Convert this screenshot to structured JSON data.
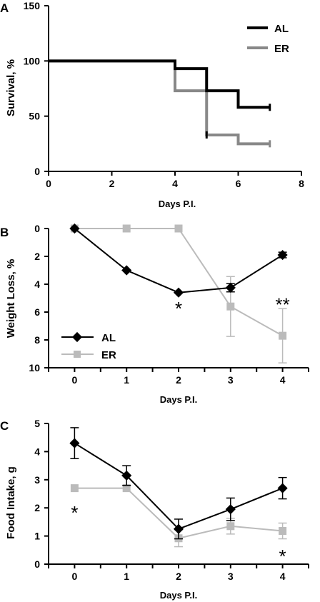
{
  "chart_data": [
    {
      "panel": "A",
      "type": "line",
      "step": true,
      "ylabel": "Survival, %",
      "xlabel": "Days P.I.",
      "xlim": [
        0,
        8
      ],
      "ylim": [
        0,
        150
      ],
      "xticks": [
        "0",
        "2",
        "4",
        "6",
        "8"
      ],
      "yticks": [
        "0",
        "50",
        "100",
        "150"
      ],
      "legend_placement": "top-right",
      "series": [
        {
          "name": "AL",
          "color": "#000000",
          "x": [
            0,
            4,
            5,
            6,
            7
          ],
          "y": [
            100,
            93,
            73,
            58,
            58
          ]
        },
        {
          "name": "ER",
          "color": "#888888",
          "x": [
            0,
            4,
            5,
            6,
            7
          ],
          "y": [
            100,
            73,
            33,
            25,
            25
          ]
        }
      ]
    },
    {
      "panel": "B",
      "type": "line",
      "ylabel": "Weight Loss, %",
      "xlabel": "Days P.I.",
      "xlim": [
        -0.5,
        4.5
      ],
      "ylim": [
        0,
        10
      ],
      "y_inverted": true,
      "xticks": [
        "0",
        "1",
        "2",
        "3",
        "4"
      ],
      "yticks": [
        "0",
        "2",
        "4",
        "6",
        "8",
        "10"
      ],
      "legend_placement": "bottom-left",
      "series": [
        {
          "name": "AL",
          "color": "#000000",
          "marker": "diamond",
          "x": [
            0,
            1,
            2,
            3,
            4
          ],
          "y": [
            0,
            3,
            4.6,
            4.25,
            1.9
          ],
          "err": [
            0,
            0,
            0,
            0.3,
            0.2
          ]
        },
        {
          "name": "ER",
          "color": "#bbbbbb",
          "marker": "square",
          "x": [
            0,
            1,
            2,
            3,
            4
          ],
          "y": [
            0,
            0,
            0,
            5.6,
            7.7
          ],
          "err": [
            0,
            0,
            0,
            2.15,
            1.95
          ]
        }
      ],
      "annotations": [
        {
          "text": "*",
          "x": 2,
          "y": 5.6
        },
        {
          "text": "**",
          "x": 4,
          "y": 5.3
        }
      ]
    },
    {
      "panel": "C",
      "type": "line",
      "ylabel": "Food Intake, g",
      "xlabel": "Days P.I.",
      "xlim": [
        -0.5,
        4.5
      ],
      "ylim": [
        0,
        5
      ],
      "xticks": [
        "0",
        "1",
        "2",
        "3",
        "4"
      ],
      "yticks": [
        "0",
        "1",
        "2",
        "3",
        "4",
        "5"
      ],
      "series": [
        {
          "name": "AL",
          "color": "#000000",
          "marker": "diamond",
          "x": [
            0,
            1,
            2,
            3,
            4
          ],
          "y": [
            4.3,
            3.15,
            1.25,
            1.95,
            2.7
          ],
          "err": [
            0.55,
            0.35,
            0.35,
            0.4,
            0.38
          ]
        },
        {
          "name": "ER",
          "color": "#bbbbbb",
          "marker": "square",
          "x": [
            0,
            1,
            2,
            3,
            4
          ],
          "y": [
            2.7,
            2.7,
            0.92,
            1.35,
            1.18
          ],
          "err": [
            0,
            0,
            0.3,
            0.28,
            0.28
          ]
        }
      ],
      "annotations": [
        {
          "text": "*",
          "x": 0,
          "y": 1.9
        },
        {
          "text": "*",
          "x": 4,
          "y": 0.35
        }
      ]
    }
  ]
}
